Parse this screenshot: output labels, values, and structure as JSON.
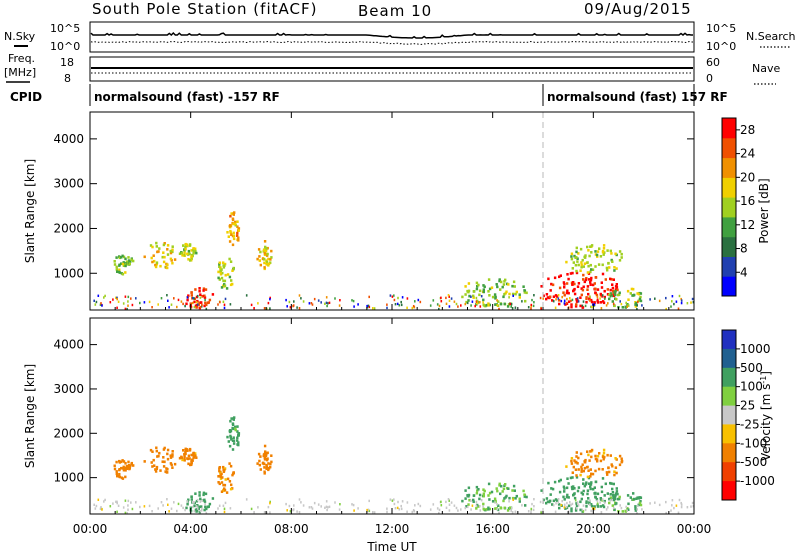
{
  "header": {
    "station": "South Pole Station (fitACF)",
    "beam": "Beam 10",
    "date": "09/Aug/2015"
  },
  "top_panels": {
    "nsky_label": "N.Sky",
    "nsearch_label": "N.Search",
    "noise_ticks": [
      "10^5",
      "10^0"
    ],
    "freq_label": "Freq.",
    "freq_unit": "[MHz]",
    "freq_ticks": [
      "18",
      "8"
    ],
    "nave_label": "Nave",
    "nave_ticks": [
      "60",
      "0"
    ],
    "cpid_label": "CPID",
    "cpid_segments": [
      {
        "text": "normalsound (fast) -157 RF",
        "start_hour": 0
      },
      {
        "text": "normalsound (fast) 157 RF",
        "start_hour": 18
      }
    ]
  },
  "colors": {
    "power": [
      "#0000ff",
      "#2040b0",
      "#2a7040",
      "#40a040",
      "#a0d020",
      "#f0d000",
      "#f09000",
      "#f05000",
      "#ff0000"
    ],
    "velocity": [
      "#ff0000",
      "#f04000",
      "#f08000",
      "#f8c000",
      "#c8c8c8",
      "#80d040",
      "#40a060",
      "#206090",
      "#2030c0"
    ],
    "divider": "#b8b8b8"
  },
  "chart_data": [
    {
      "type": "heatmap",
      "name": "power-panel",
      "xlabel": "",
      "ylabel": "Slant Range [km]",
      "xlim": [
        0,
        24
      ],
      "ylim": [
        180,
        4600
      ],
      "yticks": [
        "1000",
        "2000",
        "3000",
        "4000"
      ],
      "colorbar_label": "Power [dB]",
      "colorbar_ticks": [
        "4",
        "8",
        "12",
        "16",
        "20",
        "24",
        "28"
      ],
      "colorbar_range": [
        0,
        30
      ],
      "regions": [
        {
          "t0": 0.9,
          "t1": 1.7,
          "r0": 1000,
          "r1": 1450,
          "value": 14
        },
        {
          "t0": 2.1,
          "t1": 3.4,
          "r0": 1100,
          "r1": 1750,
          "value": 18
        },
        {
          "t0": 3.5,
          "t1": 4.2,
          "r0": 1300,
          "r1": 1700,
          "value": 16
        },
        {
          "t0": 3.7,
          "t1": 4.9,
          "r0": 200,
          "r1": 700,
          "value": 28
        },
        {
          "t0": 5.0,
          "t1": 5.7,
          "r0": 650,
          "r1": 1400,
          "value": 16
        },
        {
          "t0": 5.4,
          "t1": 5.9,
          "r0": 1600,
          "r1": 2400,
          "value": 20
        },
        {
          "t0": 6.6,
          "t1": 7.2,
          "r0": 1100,
          "r1": 1750,
          "value": 18
        },
        {
          "t0": 14.5,
          "t1": 17.5,
          "r0": 250,
          "r1": 900,
          "value": 14
        },
        {
          "t0": 17.8,
          "t1": 21.0,
          "r0": 250,
          "r1": 1100,
          "value": 28
        },
        {
          "t0": 18.8,
          "t1": 21.2,
          "r0": 1000,
          "r1": 1700,
          "value": 16
        },
        {
          "t0": 20.5,
          "t1": 22.0,
          "r0": 250,
          "r1": 700,
          "value": 14
        }
      ]
    },
    {
      "type": "heatmap",
      "name": "velocity-panel",
      "xlabel": "Time UT",
      "ylabel": "Slant Range [km]",
      "xlim": [
        0,
        24
      ],
      "ylim": [
        180,
        4600
      ],
      "xticks": [
        "00:00",
        "04:00",
        "08:00",
        "12:00",
        "16:00",
        "20:00",
        "00:00"
      ],
      "yticks": [
        "1000",
        "2000",
        "3000",
        "4000"
      ],
      "colorbar_label": "Velocity [m s^-1]",
      "colorbar_ticks": [
        "-1000",
        "-500",
        "-100",
        "-25",
        "25",
        "100",
        "500",
        "1000"
      ],
      "colorbar_range": [
        -1000,
        1000
      ],
      "regions": [
        {
          "t0": 0.9,
          "t1": 1.7,
          "r0": 1000,
          "r1": 1450,
          "value": -300
        },
        {
          "t0": 2.1,
          "t1": 3.4,
          "r0": 1100,
          "r1": 1750,
          "value": -300
        },
        {
          "t0": 3.5,
          "t1": 4.2,
          "r0": 1300,
          "r1": 1700,
          "value": -200
        },
        {
          "t0": 3.7,
          "t1": 4.9,
          "r0": 200,
          "r1": 700,
          "value": 300
        },
        {
          "t0": 5.0,
          "t1": 5.7,
          "r0": 650,
          "r1": 1400,
          "value": -150
        },
        {
          "t0": 5.4,
          "t1": 5.9,
          "r0": 1600,
          "r1": 2400,
          "value": 150
        },
        {
          "t0": 6.6,
          "t1": 7.2,
          "r0": 1100,
          "r1": 1750,
          "value": -300
        },
        {
          "t0": 14.5,
          "t1": 17.5,
          "r0": 250,
          "r1": 900,
          "value": 100
        },
        {
          "t0": 17.8,
          "t1": 21.0,
          "r0": 250,
          "r1": 1100,
          "value": 300
        },
        {
          "t0": 18.8,
          "t1": 21.2,
          "r0": 1000,
          "r1": 1700,
          "value": -150
        },
        {
          "t0": 20.5,
          "t1": 22.0,
          "r0": 250,
          "r1": 700,
          "value": 150
        }
      ]
    }
  ]
}
